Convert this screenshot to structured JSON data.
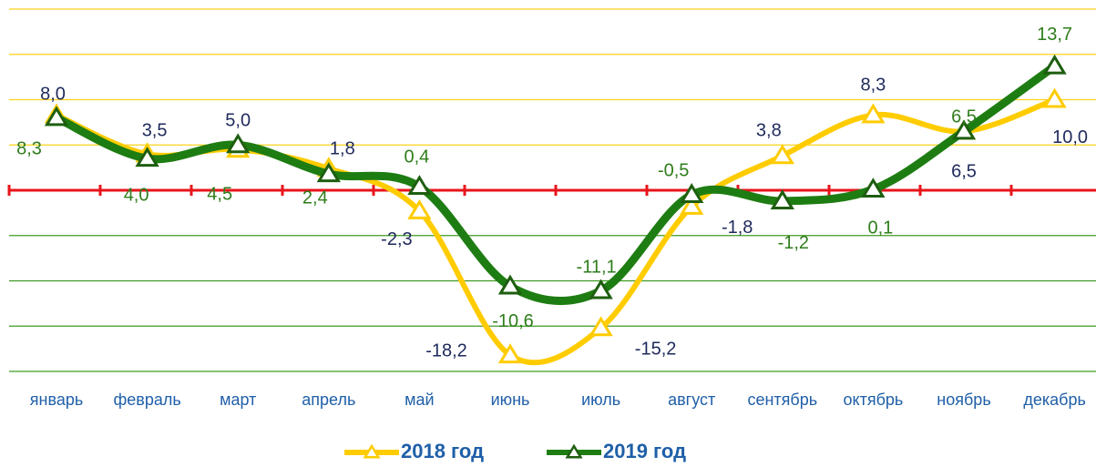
{
  "chart_data": {
    "type": "line",
    "categories": [
      "январь",
      "февраль",
      "март",
      "апрель",
      "май",
      "июнь",
      "июль",
      "август",
      "сентябрь",
      "октябрь",
      "ноябрь",
      "декабрь"
    ],
    "series": [
      {
        "name": "2018 год",
        "color": "#ffcc00",
        "values": [
          8.3,
          4.0,
          4.5,
          2.4,
          -2.3,
          -18.2,
          -15.2,
          -1.8,
          3.8,
          8.3,
          6.5,
          10.0
        ],
        "value_labels": [
          "8,3",
          "4,0",
          "4,5",
          "2,4",
          "-2,3",
          "-18,2",
          "-15,2",
          "-1,8",
          "3,8",
          "8,3",
          "6,5",
          "10,0"
        ]
      },
      {
        "name": "2019 год",
        "color": "#1e7d12",
        "values": [
          8.0,
          3.5,
          5.0,
          1.8,
          0.4,
          -10.6,
          -11.1,
          -0.5,
          -1.2,
          0.1,
          6.5,
          13.7
        ],
        "value_labels": [
          "8,0",
          "3,5",
          "5,0",
          "1,8",
          "0,4",
          "-10,6",
          "-11,1",
          "-0,5",
          "-1,2",
          "0,1",
          "6,5",
          "13,7"
        ]
      }
    ],
    "ylim": [
      -20,
      20
    ],
    "yticks": [
      -20,
      -15,
      -10,
      -5,
      0,
      5,
      10,
      15,
      20
    ],
    "grid": true
  }
}
